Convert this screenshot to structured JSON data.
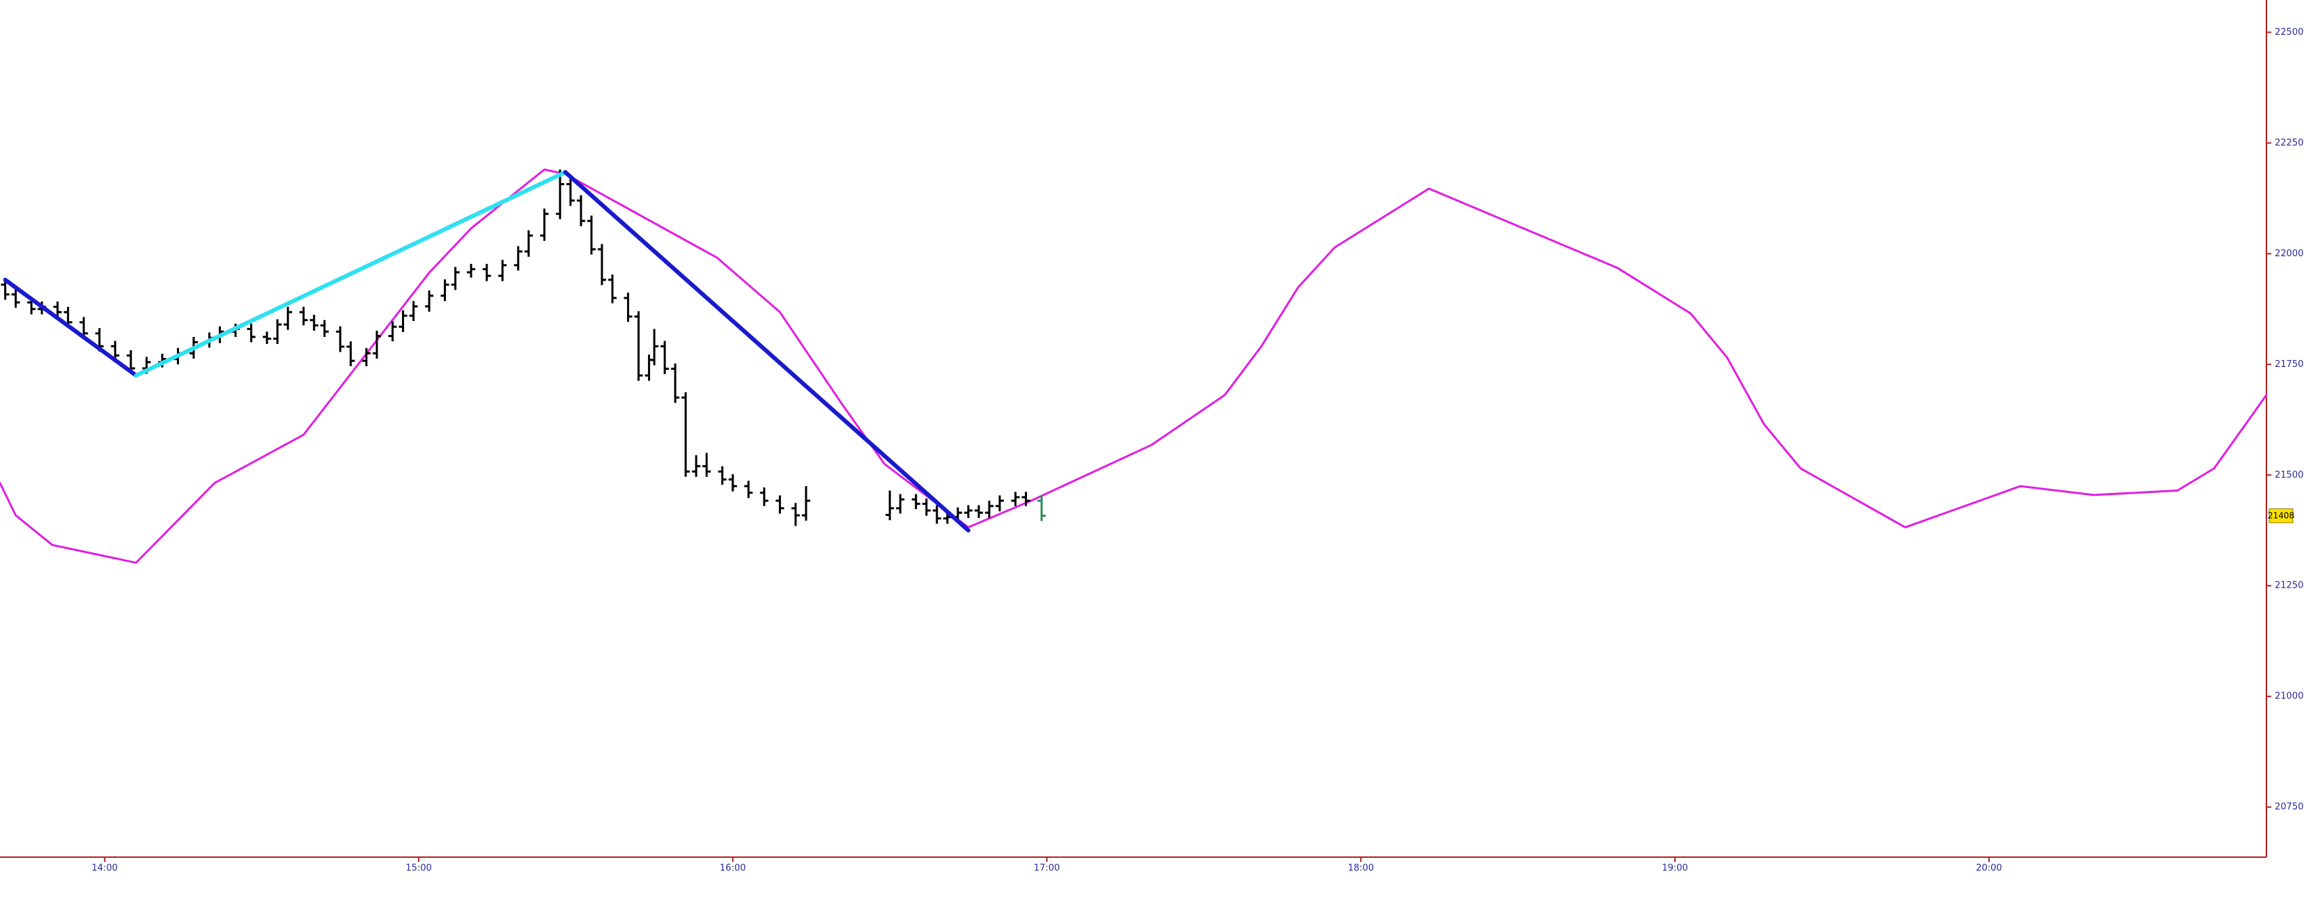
{
  "chart_data": {
    "type": "ohlc",
    "xlim": [
      820,
      1253
    ],
    "ylim": [
      20637,
      22573
    ],
    "xticks": [
      {
        "value": 840,
        "label": "14:00"
      },
      {
        "value": 900,
        "label": "15:00"
      },
      {
        "value": 960,
        "label": "16:00"
      },
      {
        "value": 1020,
        "label": "17:00"
      },
      {
        "value": 1080,
        "label": "18:00"
      },
      {
        "value": 1140,
        "label": "19:00"
      },
      {
        "value": 1200,
        "label": "20:00"
      }
    ],
    "yticks": [
      20750,
      21000,
      21250,
      21500,
      21750,
      22000,
      22250,
      22500
    ],
    "axis_color": "#b22222",
    "tick_label_color": "#2a2a9a",
    "ohlc": {
      "color": "#000000",
      "last_color": "#2e8b57",
      "x": [
        821,
        823,
        826,
        828,
        831,
        833,
        836,
        839,
        842,
        845,
        848,
        851,
        854,
        857,
        860,
        862,
        865,
        868,
        871,
        873,
        875,
        878,
        880,
        882,
        885,
        887,
        890,
        892,
        895,
        897,
        899,
        902,
        905,
        907,
        910,
        913,
        916,
        919,
        921,
        924,
        927,
        929,
        931,
        933,
        935,
        937,
        940,
        942,
        944,
        945,
        947,
        949,
        951,
        953,
        955,
        958,
        960,
        963,
        966,
        969,
        972,
        974,
        990,
        992,
        995,
        997,
        999,
        1001,
        1003,
        1005,
        1007,
        1009,
        1011,
        1014,
        1016,
        1019
      ],
      "open": [
        21930,
        21908,
        21890,
        21875,
        21880,
        21868,
        21845,
        21820,
        21791,
        21770,
        21741,
        21755,
        21762,
        21775,
        21800,
        21810,
        21824,
        21830,
        21812,
        21808,
        21840,
        21868,
        21850,
        21838,
        21824,
        21790,
        21758,
        21775,
        21814,
        21835,
        21860,
        21881,
        21905,
        21930,
        21958,
        21965,
        21950,
        21974,
        22005,
        22041,
        22090,
        22157,
        22120,
        22074,
        22010,
        21941,
        21900,
        21858,
        21725,
        21760,
        21791,
        21740,
        21675,
        21508,
        21520,
        21508,
        21490,
        21475,
        21460,
        21442,
        21425,
        21409,
        21410,
        21425,
        21445,
        21435,
        21420,
        21402,
        21405,
        21415,
        21420,
        21415,
        21430,
        21442,
        21450,
        21442
      ],
      "high": [
        21942,
        21920,
        21902,
        21892,
        21892,
        21880,
        21857,
        21832,
        21803,
        21782,
        21767,
        21774,
        21787,
        21812,
        21822,
        21836,
        21842,
        21842,
        21824,
        21852,
        21880,
        21880,
        21862,
        21850,
        21836,
        21802,
        21787,
        21826,
        21847,
        21872,
        21893,
        21917,
        21942,
        21970,
        21977,
        21977,
        21986,
        22017,
        22053,
        22102,
        22190,
        22169,
        22132,
        22086,
        22022,
        21953,
        21912,
        21870,
        21772,
        21830,
        21803,
        21752,
        21687,
        21545,
        21550,
        21520,
        21502,
        21487,
        21472,
        21454,
        21437,
        21475,
        21465,
        21457,
        21457,
        21447,
        21432,
        21417,
        21427,
        21432,
        21432,
        21442,
        21454,
        21462,
        21462,
        21454
      ],
      "low": [
        21896,
        21878,
        21863,
        21863,
        21856,
        21833,
        21808,
        21779,
        21758,
        21729,
        21729,
        21743,
        21750,
        21763,
        21788,
        21798,
        21812,
        21800,
        21796,
        21796,
        21828,
        21838,
        21826,
        21812,
        21778,
        21746,
        21746,
        21763,
        21802,
        21823,
        21848,
        21869,
        21893,
        21918,
        21946,
        21938,
        21938,
        21962,
        21993,
        22029,
        22078,
        22108,
        22062,
        21998,
        21929,
        21888,
        21846,
        21713,
        21713,
        21748,
        21728,
        21663,
        21496,
        21496,
        21496,
        21478,
        21463,
        21448,
        21430,
        21413,
        21385,
        21397,
        21398,
        21413,
        21423,
        21408,
        21390,
        21390,
        21393,
        21403,
        21403,
        21403,
        21418,
        21430,
        21430,
        21396
      ],
      "close": [
        21908,
        21890,
        21875,
        21880,
        21868,
        21845,
        21820,
        21791,
        21770,
        21741,
        21755,
        21762,
        21775,
        21800,
        21810,
        21824,
        21830,
        21812,
        21808,
        21840,
        21868,
        21850,
        21838,
        21824,
        21790,
        21758,
        21775,
        21814,
        21835,
        21860,
        21881,
        21905,
        21930,
        21958,
        21965,
        21950,
        21974,
        22005,
        22041,
        22090,
        22157,
        22120,
        22074,
        22010,
        21941,
        21900,
        21858,
        21725,
        21760,
        21791,
        21740,
        21675,
        21508,
        21520,
        21508,
        21490,
        21475,
        21460,
        21442,
        21425,
        21409,
        21442,
        21425,
        21445,
        21435,
        21420,
        21402,
        21405,
        21415,
        21420,
        21415,
        21430,
        21442,
        21450,
        21442,
        21408
      ]
    },
    "lines": [
      {
        "color": "#e020e0",
        "x": [
          820,
          823,
          830,
          846,
          861,
          878,
          902,
          910,
          924,
          928,
          957,
          969,
          981,
          989,
          1005,
          1017,
          1040,
          1054,
          1061,
          1068,
          1075,
          1093,
          1129,
          1143,
          1150,
          1157,
          1164,
          1184,
          1206,
          1220,
          1236,
          1243,
          1250,
          1253
        ],
        "values": [
          21482,
          21409,
          21342,
          21302,
          21482,
          21591,
          21957,
          22057,
          22190,
          22180,
          21991,
          21868,
          21658,
          21525,
          21382,
          21442,
          21568,
          21681,
          21791,
          21924,
          22014,
          22147,
          21968,
          21865,
          21765,
          21615,
          21515,
          21382,
          21475,
          21455,
          21465,
          21515,
          21631,
          21681
        ]
      }
    ],
    "trendlines": [
      {
        "color": "#1a1acc",
        "x": [
          821,
          846
        ],
        "values": [
          21941,
          21725
        ]
      },
      {
        "color": "#30e0f0",
        "x": [
          846,
          928
        ],
        "values": [
          21725,
          22184
        ]
      },
      {
        "color": "#1a1acc",
        "x": [
          928,
          1005
        ],
        "values": [
          22184,
          21375
        ]
      }
    ],
    "last_price": 21408,
    "last_price_color": "#ffe000"
  }
}
